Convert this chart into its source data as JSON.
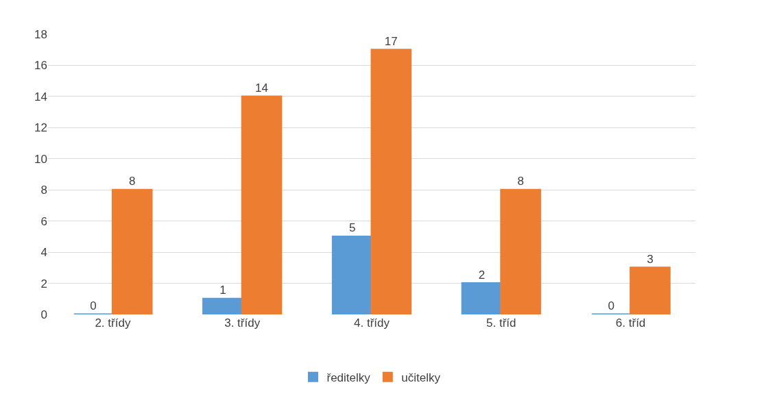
{
  "chart_data": {
    "type": "bar",
    "categories": [
      "2. třídy",
      "3. třídy",
      "4. třídy",
      "5. tříd",
      "6. tříd"
    ],
    "series": [
      {
        "name": "ředitelky",
        "color": "#5b9bd5",
        "values": [
          0,
          1,
          5,
          2,
          0
        ]
      },
      {
        "name": "učitelky",
        "color": "#ed7d31",
        "values": [
          8,
          14,
          17,
          8,
          3
        ]
      }
    ],
    "ylim": [
      0,
      18
    ],
    "yticks": [
      0,
      2,
      4,
      6,
      8,
      10,
      12,
      14,
      16,
      18
    ],
    "grid": "y",
    "legend": "bottom",
    "data_labels": true
  }
}
